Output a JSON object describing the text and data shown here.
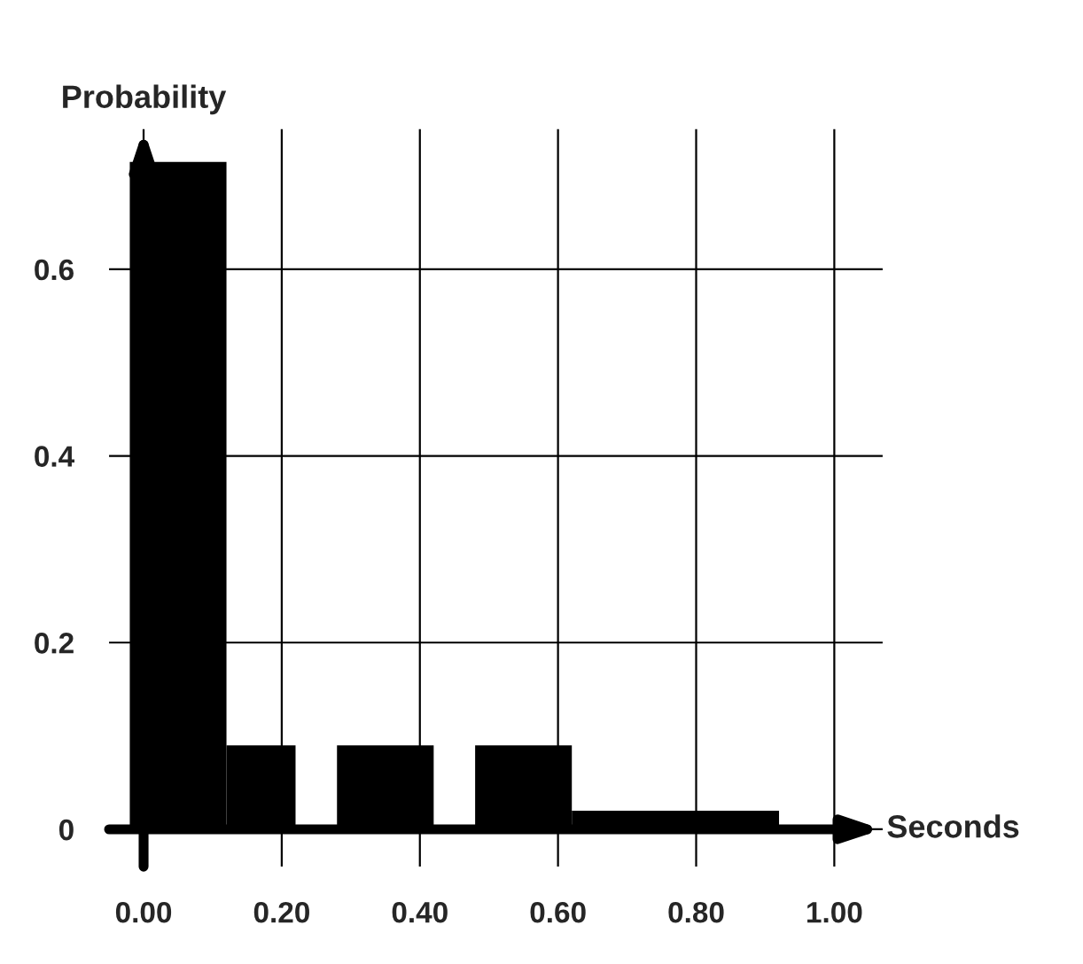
{
  "chart_data": {
    "type": "histogram",
    "xlabel": "Seconds",
    "ylabel": "Probability",
    "bins": [
      -0.02,
      0.12,
      0.22,
      0.28,
      0.42,
      0.48,
      0.62,
      0.92
    ],
    "values": [
      0.715,
      0.09,
      0,
      0.09,
      0,
      0.09,
      0.02
    ],
    "color": "#000000",
    "xlim": [
      -0.05,
      1.07
    ],
    "ylim": [
      -0.04,
      0.75
    ],
    "xticks": [
      {
        "value": 0,
        "label": "0.00"
      },
      {
        "value": 0.2,
        "label": "0.20"
      },
      {
        "value": 0.4,
        "label": "0.40"
      },
      {
        "value": 0.6,
        "label": "0.60"
      },
      {
        "value": 0.8,
        "label": "0.80"
      },
      {
        "value": 1.0,
        "label": "1.00"
      }
    ],
    "yticks": [
      0,
      0.2,
      0.4,
      0.6
    ],
    "grid": true
  }
}
